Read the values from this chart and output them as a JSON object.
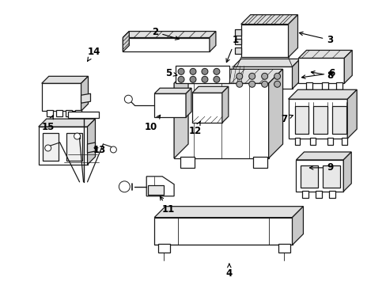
{
  "bg_color": "#ffffff",
  "lc": "#1a1a1a",
  "lw": 0.9,
  "fig_width": 4.89,
  "fig_height": 3.6,
  "dpi": 100
}
